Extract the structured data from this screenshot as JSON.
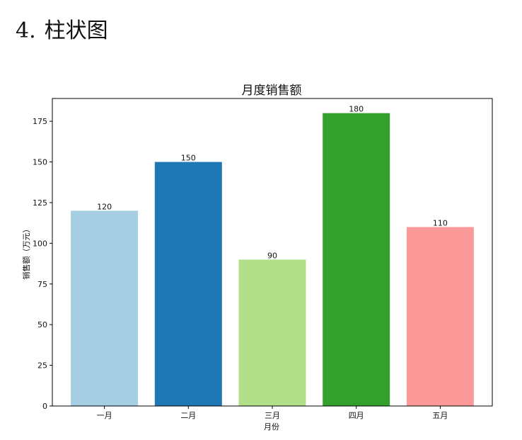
{
  "page": {
    "heading_number": "4.",
    "heading_text": "柱状图"
  },
  "chart_data": {
    "type": "bar",
    "title": "月度销售额",
    "xlabel": "月份",
    "ylabel": "销售额（万元）",
    "categories": [
      "一月",
      "二月",
      "三月",
      "四月",
      "五月"
    ],
    "values": [
      120,
      150,
      90,
      180,
      110
    ],
    "ylim": [
      0,
      189
    ],
    "yticks": [
      0,
      25,
      50,
      75,
      100,
      125,
      150,
      175
    ],
    "bar_colors": [
      "#a6cee3",
      "#1f78b4",
      "#b2df8a",
      "#33a02c",
      "#fb9a99"
    ],
    "data_labels": [
      "120",
      "150",
      "90",
      "180",
      "110"
    ],
    "grid": false,
    "legend": "none"
  }
}
